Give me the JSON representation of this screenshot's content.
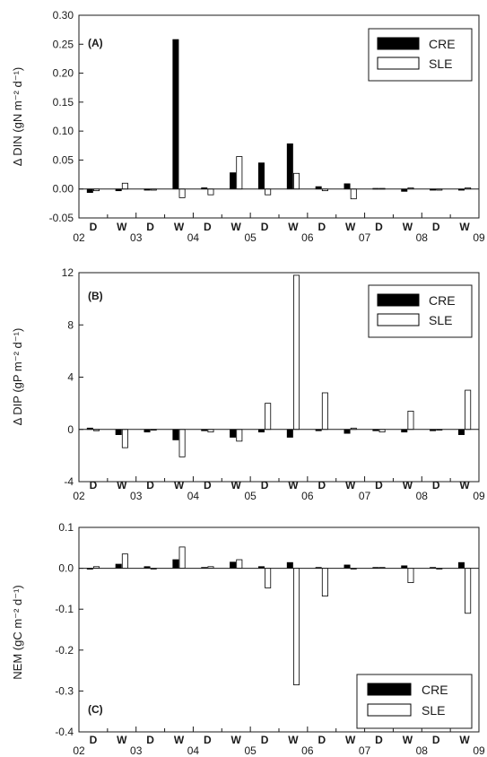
{
  "chart_data": [
    {
      "type": "bar",
      "panel_label": "(A)",
      "ylabel": "Δ DIN (gN m⁻² d⁻¹)",
      "ylim": [
        -0.05,
        0.3
      ],
      "yticks": [
        "0.30",
        "0.25",
        "0.20",
        "0.15",
        "0.10",
        "0.05",
        "0.00",
        "-0.05"
      ],
      "ytick_values": [
        0.3,
        0.25,
        0.2,
        0.15,
        0.1,
        0.05,
        0.0,
        -0.05
      ],
      "legend_position": "top-right",
      "series": [
        {
          "name": "CRE",
          "values": [
            -0.006,
            -0.003,
            -0.002,
            0.258,
            0.002,
            0.028,
            0.045,
            0.078,
            0.004,
            0.009,
            0.001,
            -0.004,
            -0.002,
            -0.002
          ]
        },
        {
          "name": "SLE",
          "values": [
            -0.003,
            0.01,
            -0.002,
            -0.015,
            -0.01,
            0.056,
            -0.01,
            0.027,
            -0.003,
            -0.017,
            0.001,
            0.002,
            -0.002,
            0.002
          ]
        }
      ]
    },
    {
      "type": "bar",
      "panel_label": "(B)",
      "ylabel": "Δ DIP (gP m⁻² d⁻¹)",
      "ylim": [
        -4,
        12
      ],
      "yticks": [
        "12",
        "8",
        "4",
        "0",
        "-4"
      ],
      "ytick_values": [
        12,
        8,
        4,
        0,
        -4
      ],
      "legend_position": "top-right",
      "series": [
        {
          "name": "CRE",
          "values": [
            0.1,
            -0.4,
            -0.2,
            -0.8,
            -0.1,
            -0.6,
            -0.2,
            -0.6,
            -0.1,
            -0.3,
            -0.1,
            -0.2,
            -0.1,
            -0.4
          ]
        },
        {
          "name": "SLE",
          "values": [
            -0.1,
            -1.4,
            0.0,
            -2.1,
            -0.2,
            -0.9,
            2.0,
            11.8,
            2.8,
            0.1,
            -0.2,
            1.4,
            0.0,
            3.0
          ]
        }
      ]
    },
    {
      "type": "bar",
      "panel_label": "(C)",
      "ylabel": "NEM (gC m⁻² d⁻¹)",
      "ylim": [
        -0.4,
        0.1
      ],
      "yticks": [
        "0.1",
        "0.0",
        "-0.1",
        "-0.2",
        "-0.3",
        "-0.4"
      ],
      "ytick_values": [
        0.1,
        0.0,
        -0.1,
        -0.2,
        -0.3,
        -0.4
      ],
      "legend_position": "bottom-right",
      "series": [
        {
          "name": "CRE",
          "values": [
            -0.002,
            0.01,
            0.004,
            0.021,
            0.002,
            0.015,
            0.004,
            0.014,
            0.002,
            0.008,
            0.002,
            0.006,
            0.002,
            0.014
          ]
        },
        {
          "name": "SLE",
          "values": [
            0.004,
            0.035,
            0.0,
            0.052,
            0.004,
            0.021,
            -0.048,
            -0.285,
            -0.068,
            0.0,
            0.002,
            -0.035,
            0.0,
            -0.11
          ]
        }
      ]
    }
  ],
  "x_axis": {
    "year_labels": [
      "02",
      "03",
      "04",
      "05",
      "06",
      "07",
      "08",
      "09"
    ],
    "season_labels": [
      "D",
      "W",
      "D",
      "W",
      "D",
      "W",
      "D",
      "W",
      "D",
      "W",
      "D",
      "W",
      "D",
      "W"
    ]
  },
  "colors": {
    "CRE": "#000000",
    "SLE": "#ffffff",
    "axis": "#1a1a1a"
  }
}
